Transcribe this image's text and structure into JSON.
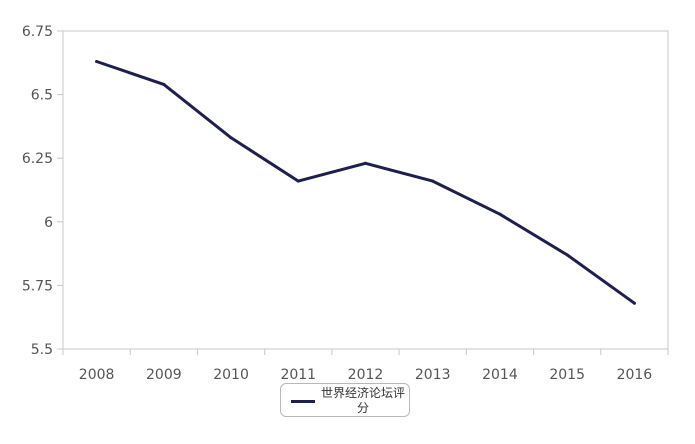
{
  "chart_data": {
    "type": "line",
    "title": "",
    "xlabel": "",
    "ylabel": "",
    "categories": [
      "2008",
      "2009",
      "2010",
      "2011",
      "2012",
      "2013",
      "2014",
      "2015",
      "2016"
    ],
    "series": [
      {
        "name": "世界经济论坛评分",
        "values": [
          6.63,
          6.54,
          6.33,
          6.16,
          6.23,
          6.16,
          6.03,
          5.87,
          5.68
        ]
      }
    ],
    "ylim": [
      5.5,
      6.75
    ],
    "y_ticks": [
      "5.5",
      "5.75",
      "6",
      "6.25",
      "6.5",
      "6.75"
    ],
    "grid": false,
    "legend_position": "bottom-center",
    "colors": {
      "series": "#1f1f4f",
      "axis": "#c8c8c8",
      "tick_text": "#555555"
    }
  }
}
